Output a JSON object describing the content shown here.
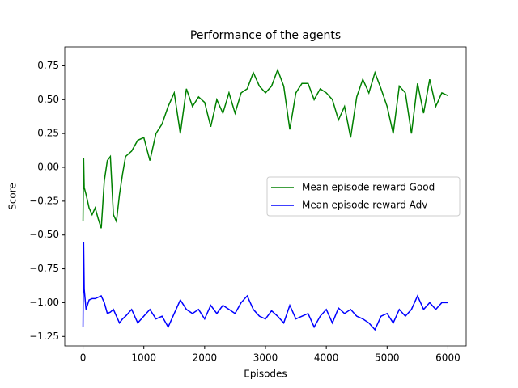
{
  "chart_data": {
    "type": "line",
    "title": "Performance of the agents",
    "x_label": "Episodes",
    "y_label": "Score",
    "x": [
      0,
      10,
      20,
      50,
      100,
      150,
      200,
      250,
      300,
      350,
      400,
      450,
      500,
      550,
      600,
      650,
      700,
      800,
      900,
      1000,
      1100,
      1200,
      1300,
      1400,
      1500,
      1600,
      1700,
      1800,
      1900,
      2000,
      2100,
      2200,
      2300,
      2400,
      2500,
      2600,
      2700,
      2800,
      2900,
      3000,
      3100,
      3200,
      3300,
      3400,
      3500,
      3600,
      3700,
      3800,
      3900,
      4000,
      4100,
      4200,
      4300,
      4400,
      4500,
      4600,
      4700,
      4800,
      4900,
      5000,
      5100,
      5200,
      5300,
      5400,
      5500,
      5600,
      5700,
      5800,
      5900,
      6000
    ],
    "series": [
      {
        "name": "Mean episode reward Good",
        "color": "#008000",
        "values": [
          -0.4,
          0.07,
          -0.15,
          -0.2,
          -0.3,
          -0.35,
          -0.3,
          -0.38,
          -0.45,
          -0.1,
          0.05,
          0.08,
          -0.35,
          -0.4,
          -0.2,
          -0.05,
          0.08,
          0.12,
          0.2,
          0.22,
          0.05,
          0.25,
          0.32,
          0.45,
          0.55,
          0.25,
          0.58,
          0.45,
          0.52,
          0.48,
          0.3,
          0.5,
          0.4,
          0.55,
          0.4,
          0.55,
          0.58,
          0.7,
          0.6,
          0.55,
          0.6,
          0.72,
          0.6,
          0.28,
          0.55,
          0.62,
          0.62,
          0.5,
          0.58,
          0.55,
          0.5,
          0.35,
          0.45,
          0.22,
          0.52,
          0.65,
          0.55,
          0.7,
          0.58,
          0.45,
          0.25,
          0.6,
          0.55,
          0.25,
          0.62,
          0.4,
          0.65,
          0.45,
          0.55,
          0.53
        ]
      },
      {
        "name": "Mean episode reward Adv",
        "color": "#0000ff",
        "values": [
          -1.18,
          -0.55,
          -0.9,
          -1.05,
          -0.98,
          -0.97,
          -0.97,
          -0.96,
          -0.95,
          -1.0,
          -1.08,
          -1.07,
          -1.05,
          -1.1,
          -1.15,
          -1.12,
          -1.1,
          -1.05,
          -1.15,
          -1.1,
          -1.05,
          -1.12,
          -1.1,
          -1.18,
          -1.08,
          -0.98,
          -1.05,
          -1.08,
          -1.05,
          -1.12,
          -1.02,
          -1.08,
          -1.02,
          -1.05,
          -1.08,
          -1.0,
          -0.95,
          -1.05,
          -1.1,
          -1.12,
          -1.06,
          -1.1,
          -1.15,
          -1.02,
          -1.12,
          -1.1,
          -1.08,
          -1.18,
          -1.1,
          -1.05,
          -1.15,
          -1.04,
          -1.08,
          -1.05,
          -1.1,
          -1.12,
          -1.15,
          -1.2,
          -1.1,
          -1.08,
          -1.15,
          -1.05,
          -1.1,
          -1.05,
          -0.95,
          -1.05,
          -1.0,
          -1.05,
          -1.0,
          -1.0
        ]
      }
    ],
    "xlim": [
      -300,
      6300
    ],
    "ylim": [
      -1.32,
      0.89
    ],
    "xticks": [
      0,
      1000,
      2000,
      3000,
      4000,
      5000,
      6000
    ],
    "yticks": [
      {
        "value": -1.25,
        "label": "−1.25"
      },
      {
        "value": -1.0,
        "label": "−1.00"
      },
      {
        "value": -0.75,
        "label": "−0.75"
      },
      {
        "value": -0.5,
        "label": "−0.50"
      },
      {
        "value": -0.25,
        "label": "−0.25"
      },
      {
        "value": 0,
        "label": "0.00"
      },
      0.25,
      {
        "value": 0.5,
        "label": "0.50"
      },
      0.75
    ],
    "legend": "center right"
  }
}
